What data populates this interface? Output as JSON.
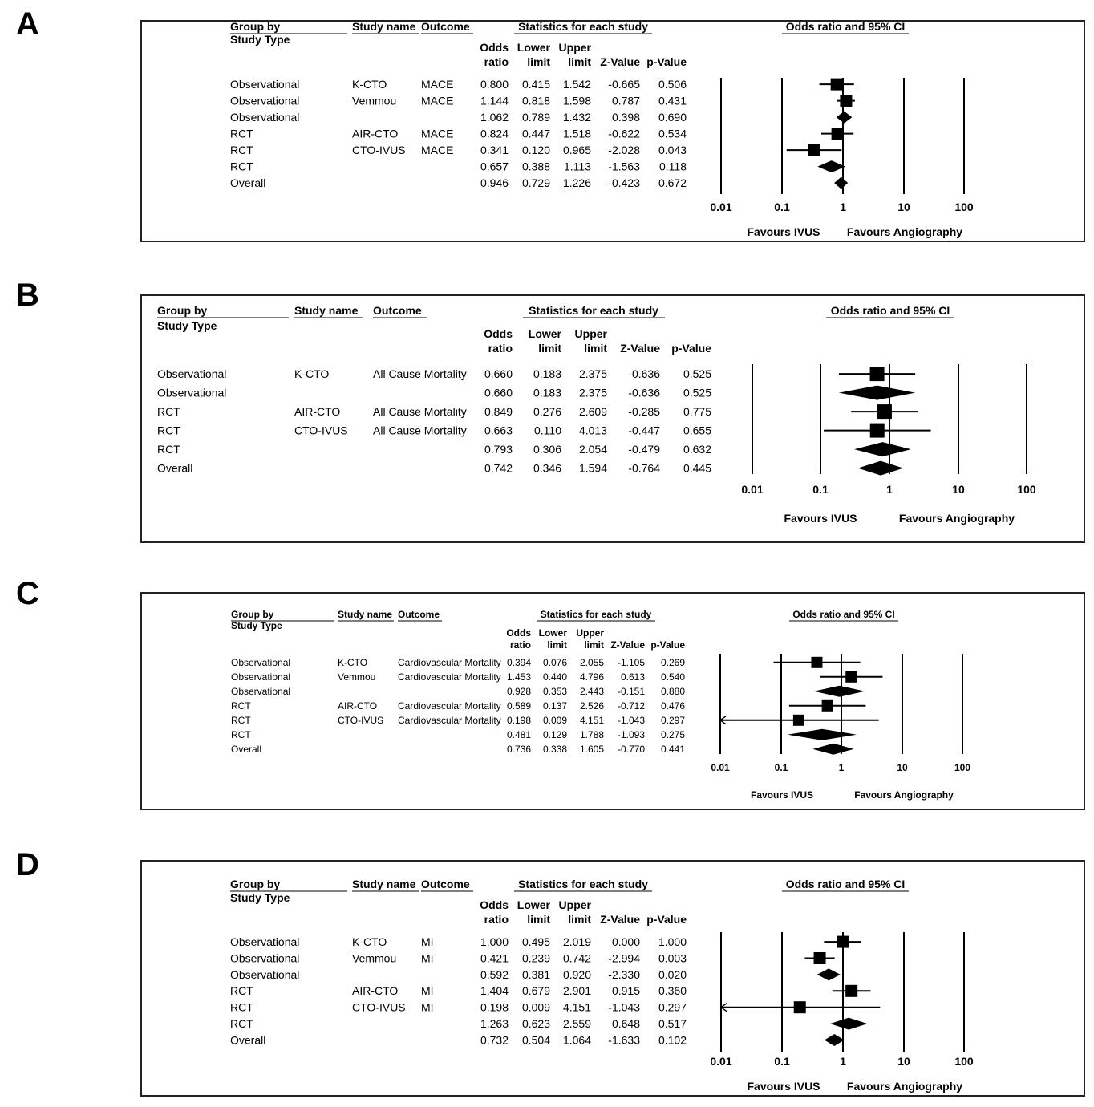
{
  "panels": [
    {
      "label": "A",
      "headers": {
        "group_by": "Group by",
        "study_type": "Study Type",
        "study_name": "Study name",
        "outcome": "Outcome",
        "stats_title": "Statistics for each study",
        "odds1": "Odds",
        "odds2": "ratio",
        "lower1": "Lower",
        "lower2": "limit",
        "upper1": "Upper",
        "upper2": "limit",
        "z": "Z-Value",
        "p": "p-Value",
        "plot_title": "Odds ratio and 95% CI"
      },
      "rows": [
        {
          "group": "Observational",
          "study": "K-CTO",
          "outcome": "MACE",
          "or": "0.800",
          "lower": "0.415",
          "upper": "1.542",
          "z": "-0.665",
          "p": "0.506",
          "kind": "study"
        },
        {
          "group": "Observational",
          "study": "Vemmou",
          "outcome": "MACE",
          "or": "1.144",
          "lower": "0.818",
          "upper": "1.598",
          "z": "0.787",
          "p": "0.431",
          "kind": "study"
        },
        {
          "group": "Observational",
          "study": "",
          "outcome": "",
          "or": "1.062",
          "lower": "0.789",
          "upper": "1.432",
          "z": "0.398",
          "p": "0.690",
          "kind": "summary"
        },
        {
          "group": "RCT",
          "study": "AIR-CTO",
          "outcome": "MACE",
          "or": "0.824",
          "lower": "0.447",
          "upper": "1.518",
          "z": "-0.622",
          "p": "0.534",
          "kind": "study"
        },
        {
          "group": "RCT",
          "study": "CTO-IVUS",
          "outcome": "MACE",
          "or": "0.341",
          "lower": "0.120",
          "upper": "0.965",
          "z": "-2.028",
          "p": "0.043",
          "kind": "study"
        },
        {
          "group": "RCT",
          "study": "",
          "outcome": "",
          "or": "0.657",
          "lower": "0.388",
          "upper": "1.113",
          "z": "-1.563",
          "p": "0.118",
          "kind": "summary"
        },
        {
          "group": "Overall",
          "study": "",
          "outcome": "",
          "or": "0.946",
          "lower": "0.729",
          "upper": "1.226",
          "z": "-0.423",
          "p": "0.672",
          "kind": "summary"
        }
      ],
      "ticks": [
        "0.01",
        "0.1",
        "1",
        "10",
        "100"
      ],
      "favours_left": "Favours IVUS",
      "favours_right": "Favours Angiography"
    },
    {
      "label": "B",
      "headers": {
        "group_by": "Group by",
        "study_type": "Study Type",
        "study_name": "Study name",
        "outcome": "Outcome",
        "stats_title": "Statistics for each study",
        "odds1": "Odds",
        "odds2": "ratio",
        "lower1": "Lower",
        "lower2": "limit",
        "upper1": "Upper",
        "upper2": "limit",
        "z": "Z-Value",
        "p": "p-Value",
        "plot_title": "Odds ratio and 95% CI"
      },
      "rows": [
        {
          "group": "Observational",
          "study": "K-CTO",
          "outcome": "All Cause Mortality",
          "or": "0.660",
          "lower": "0.183",
          "upper": "2.375",
          "z": "-0.636",
          "p": "0.525",
          "kind": "study"
        },
        {
          "group": "Observational",
          "study": "",
          "outcome": "",
          "or": "0.660",
          "lower": "0.183",
          "upper": "2.375",
          "z": "-0.636",
          "p": "0.525",
          "kind": "summary"
        },
        {
          "group": "RCT",
          "study": "AIR-CTO",
          "outcome": "All Cause Mortality",
          "or": "0.849",
          "lower": "0.276",
          "upper": "2.609",
          "z": "-0.285",
          "p": "0.775",
          "kind": "study"
        },
        {
          "group": "RCT",
          "study": "CTO-IVUS",
          "outcome": "All Cause Mortality",
          "or": "0.663",
          "lower": "0.110",
          "upper": "4.013",
          "z": "-0.447",
          "p": "0.655",
          "kind": "study"
        },
        {
          "group": "RCT",
          "study": "",
          "outcome": "",
          "or": "0.793",
          "lower": "0.306",
          "upper": "2.054",
          "z": "-0.479",
          "p": "0.632",
          "kind": "summary"
        },
        {
          "group": "Overall",
          "study": "",
          "outcome": "",
          "or": "0.742",
          "lower": "0.346",
          "upper": "1.594",
          "z": "-0.764",
          "p": "0.445",
          "kind": "summary"
        }
      ],
      "ticks": [
        "0.01",
        "0.1",
        "1",
        "10",
        "100"
      ],
      "favours_left": "Favours IVUS",
      "favours_right": "Favours Angiography"
    },
    {
      "label": "C",
      "headers": {
        "group_by": "Group by",
        "study_type": "Study Type",
        "study_name": "Study name",
        "outcome": "Outcome",
        "stats_title": "Statistics for each study",
        "odds1": "Odds",
        "odds2": "ratio",
        "lower1": "Lower",
        "lower2": "limit",
        "upper1": "Upper",
        "upper2": "limit",
        "z": "Z-Value",
        "p": "p-Value",
        "plot_title": "Odds ratio and 95% CI"
      },
      "rows": [
        {
          "group": "Observational",
          "study": "K-CTO",
          "outcome": "Cardiovascular Mortality",
          "or": "0.394",
          "lower": "0.076",
          "upper": "2.055",
          "z": "-1.105",
          "p": "0.269",
          "kind": "study"
        },
        {
          "group": "Observational",
          "study": "Vemmou",
          "outcome": "Cardiovascular Mortality",
          "or": "1.453",
          "lower": "0.440",
          "upper": "4.796",
          "z": "0.613",
          "p": "0.540",
          "kind": "study"
        },
        {
          "group": "Observational",
          "study": "",
          "outcome": "",
          "or": "0.928",
          "lower": "0.353",
          "upper": "2.443",
          "z": "-0.151",
          "p": "0.880",
          "kind": "summary"
        },
        {
          "group": "RCT",
          "study": "AIR-CTO",
          "outcome": "Cardiovascular Mortality",
          "or": "0.589",
          "lower": "0.137",
          "upper": "2.526",
          "z": "-0.712",
          "p": "0.476",
          "kind": "study"
        },
        {
          "group": "RCT",
          "study": "CTO-IVUS",
          "outcome": "Cardiovascular Mortality",
          "or": "0.198",
          "lower": "0.009",
          "upper": "4.151",
          "z": "-1.043",
          "p": "0.297",
          "kind": "study"
        },
        {
          "group": "RCT",
          "study": "",
          "outcome": "",
          "or": "0.481",
          "lower": "0.129",
          "upper": "1.788",
          "z": "-1.093",
          "p": "0.275",
          "kind": "summary"
        },
        {
          "group": "Overall",
          "study": "",
          "outcome": "",
          "or": "0.736",
          "lower": "0.338",
          "upper": "1.605",
          "z": "-0.770",
          "p": "0.441",
          "kind": "summary"
        }
      ],
      "ticks": [
        "0.01",
        "0.1",
        "1",
        "10",
        "100"
      ],
      "favours_left": "Favours IVUS",
      "favours_right": "Favours Angiography"
    },
    {
      "label": "D",
      "headers": {
        "group_by": "Group by",
        "study_type": "Study Type",
        "study_name": "Study name",
        "outcome": "Outcome",
        "stats_title": "Statistics for each study",
        "odds1": "Odds",
        "odds2": "ratio",
        "lower1": "Lower",
        "lower2": "limit",
        "upper1": "Upper",
        "upper2": "limit",
        "z": "Z-Value",
        "p": "p-Value",
        "plot_title": "Odds ratio and 95% CI"
      },
      "rows": [
        {
          "group": "Observational",
          "study": "K-CTO",
          "outcome": "MI",
          "or": "1.000",
          "lower": "0.495",
          "upper": "2.019",
          "z": "0.000",
          "p": "1.000",
          "kind": "study"
        },
        {
          "group": "Observational",
          "study": "Vemmou",
          "outcome": "MI",
          "or": "0.421",
          "lower": "0.239",
          "upper": "0.742",
          "z": "-2.994",
          "p": "0.003",
          "kind": "study"
        },
        {
          "group": "Observational",
          "study": "",
          "outcome": "",
          "or": "0.592",
          "lower": "0.381",
          "upper": "0.920",
          "z": "-2.330",
          "p": "0.020",
          "kind": "summary"
        },
        {
          "group": "RCT",
          "study": "AIR-CTO",
          "outcome": "MI",
          "or": "1.404",
          "lower": "0.679",
          "upper": "2.901",
          "z": "0.915",
          "p": "0.360",
          "kind": "study"
        },
        {
          "group": "RCT",
          "study": "CTO-IVUS",
          "outcome": "MI",
          "or": "0.198",
          "lower": "0.009",
          "upper": "4.151",
          "z": "-1.043",
          "p": "0.297",
          "kind": "study"
        },
        {
          "group": "RCT",
          "study": "",
          "outcome": "",
          "or": "1.263",
          "lower": "0.623",
          "upper": "2.559",
          "z": "0.648",
          "p": "0.517",
          "kind": "summary"
        },
        {
          "group": "Overall",
          "study": "",
          "outcome": "",
          "or": "0.732",
          "lower": "0.504",
          "upper": "1.064",
          "z": "-1.633",
          "p": "0.102",
          "kind": "summary"
        }
      ],
      "ticks": [
        "0.01",
        "0.1",
        "1",
        "10",
        "100"
      ],
      "favours_left": "Favours IVUS",
      "favours_right": "Favours Angiography"
    }
  ],
  "chart_data": [
    {
      "type": "forest",
      "scale": "log",
      "xlim": [
        0.01,
        100
      ],
      "title": "Odds ratio and 95% CI",
      "series": [
        {
          "name": "K-CTO",
          "value": 0.8,
          "ci": [
            0.415,
            1.542
          ]
        },
        {
          "name": "Vemmou",
          "value": 1.144,
          "ci": [
            0.818,
            1.598
          ]
        },
        {
          "name": "Observational",
          "value": 1.062,
          "ci": [
            0.789,
            1.432
          ]
        },
        {
          "name": "AIR-CTO",
          "value": 0.824,
          "ci": [
            0.447,
            1.518
          ]
        },
        {
          "name": "CTO-IVUS",
          "value": 0.341,
          "ci": [
            0.12,
            0.965
          ]
        },
        {
          "name": "RCT",
          "value": 0.657,
          "ci": [
            0.388,
            1.113
          ]
        },
        {
          "name": "Overall",
          "value": 0.946,
          "ci": [
            0.729,
            1.226
          ]
        }
      ]
    },
    {
      "type": "forest",
      "scale": "log",
      "xlim": [
        0.01,
        100
      ],
      "title": "Odds ratio and 95% CI",
      "series": [
        {
          "name": "K-CTO",
          "value": 0.66,
          "ci": [
            0.183,
            2.375
          ]
        },
        {
          "name": "Observational",
          "value": 0.66,
          "ci": [
            0.183,
            2.375
          ]
        },
        {
          "name": "AIR-CTO",
          "value": 0.849,
          "ci": [
            0.276,
            2.609
          ]
        },
        {
          "name": "CTO-IVUS",
          "value": 0.663,
          "ci": [
            0.11,
            4.013
          ]
        },
        {
          "name": "RCT",
          "value": 0.793,
          "ci": [
            0.306,
            2.054
          ]
        },
        {
          "name": "Overall",
          "value": 0.742,
          "ci": [
            0.346,
            1.594
          ]
        }
      ]
    },
    {
      "type": "forest",
      "scale": "log",
      "xlim": [
        0.01,
        100
      ],
      "title": "Odds ratio and 95% CI",
      "series": [
        {
          "name": "K-CTO",
          "value": 0.394,
          "ci": [
            0.076,
            2.055
          ]
        },
        {
          "name": "Vemmou",
          "value": 1.453,
          "ci": [
            0.44,
            4.796
          ]
        },
        {
          "name": "Observational",
          "value": 0.928,
          "ci": [
            0.353,
            2.443
          ]
        },
        {
          "name": "AIR-CTO",
          "value": 0.589,
          "ci": [
            0.137,
            2.526
          ]
        },
        {
          "name": "CTO-IVUS",
          "value": 0.198,
          "ci": [
            0.009,
            4.151
          ]
        },
        {
          "name": "RCT",
          "value": 0.481,
          "ci": [
            0.129,
            1.788
          ]
        },
        {
          "name": "Overall",
          "value": 0.736,
          "ci": [
            0.338,
            1.605
          ]
        }
      ]
    },
    {
      "type": "forest",
      "scale": "log",
      "xlim": [
        0.01,
        100
      ],
      "title": "Odds ratio and 95% CI",
      "series": [
        {
          "name": "K-CTO",
          "value": 1.0,
          "ci": [
            0.495,
            2.019
          ]
        },
        {
          "name": "Vemmou",
          "value": 0.421,
          "ci": [
            0.239,
            0.742
          ]
        },
        {
          "name": "Observational",
          "value": 0.592,
          "ci": [
            0.381,
            0.92
          ]
        },
        {
          "name": "AIR-CTO",
          "value": 1.404,
          "ci": [
            0.679,
            2.901
          ]
        },
        {
          "name": "CTO-IVUS",
          "value": 0.198,
          "ci": [
            0.009,
            4.151
          ]
        },
        {
          "name": "RCT",
          "value": 1.263,
          "ci": [
            0.623,
            2.559
          ]
        },
        {
          "name": "Overall",
          "value": 0.732,
          "ci": [
            0.504,
            1.064
          ]
        }
      ]
    }
  ]
}
